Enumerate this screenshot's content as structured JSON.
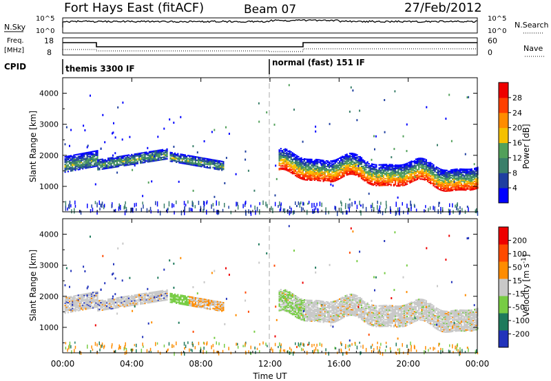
{
  "header": {
    "title": "Fort Hays East (fitACF)",
    "beam": "Beam 07",
    "date": "27/Feb/2012"
  },
  "strip": {
    "noise_left_label": "N.Sky",
    "noise_right_label": "N.Search",
    "noise_ticks_left": [
      "10^5",
      "10^0"
    ],
    "noise_ticks_right": [
      "10^5",
      "10^0"
    ],
    "freq_label_top": "Freq.",
    "freq_label_unit": "[MHz]",
    "freq_ticks": [
      "18",
      "8"
    ],
    "nave_label": "Nave",
    "nave_ticks": [
      "60",
      "0"
    ],
    "cpid_label": "CPID",
    "cpid_segments": [
      {
        "label": "themis 3300 IF",
        "start_hour": 0
      },
      {
        "label": "normal (fast) 151 IF",
        "start_hour": 12
      }
    ]
  },
  "x_axis": {
    "label": "Time UT",
    "ticks": [
      "00:00",
      "04:00",
      "08:00",
      "12:00",
      "16:00",
      "20:00",
      "00:00"
    ]
  },
  "colors": {
    "power": [
      "#0000ff",
      "#1f3fa0",
      "#3a7f6a",
      "#52a05a",
      "#f5c000",
      "#ff8c00",
      "#ff4000",
      "#ee0000"
    ],
    "velocity": [
      "#2233bb",
      "#1e7a5c",
      "#77cc44",
      "#c8c8c8",
      "#ff8c00",
      "#ff4a00",
      "#ee0000"
    ]
  },
  "chart_data": [
    {
      "type": "heatmap",
      "title": "",
      "xlabel": "Time UT",
      "ylabel": "Slant Range [km]",
      "xlim": [
        0,
        24
      ],
      "ylim": [
        180,
        4500
      ],
      "yticks": [
        "1000",
        "2000",
        "3000",
        "4000"
      ],
      "colorbar_label": "Power [dB]",
      "colorbar_ticks": [
        "4",
        "8",
        "12",
        "16",
        "20",
        "24",
        "28"
      ],
      "colorbar_range": [
        0,
        32
      ],
      "echo_bands": [
        {
          "t_start": 0.1,
          "t_end": 2.0,
          "center_km": [
            1700,
            1900
          ],
          "width_km": 500
        },
        {
          "t_start": 2.0,
          "t_end": 6.0,
          "center_km": [
            1700,
            2050
          ],
          "width_km": 350
        },
        {
          "t_start": 6.2,
          "t_end": 9.3,
          "center_km": [
            1950,
            1650
          ],
          "width_km": 300
        },
        {
          "t_start": 12.5,
          "t_end": 24.0,
          "center_km": [
            1700,
            1250
          ],
          "width_km": 700
        }
      ]
    },
    {
      "type": "heatmap",
      "title": "",
      "xlabel": "Time UT",
      "ylabel": "Slant Range [km]",
      "xlim": [
        0,
        24
      ],
      "ylim": [
        180,
        4500
      ],
      "yticks": [
        "1000",
        "2000",
        "3000",
        "4000"
      ],
      "colorbar_label": "Velocity [m s^-1]",
      "colorbar_ticks": [
        "200",
        "100",
        "50",
        "15",
        "-15",
        "-50",
        "-100",
        "-200"
      ]
    }
  ]
}
